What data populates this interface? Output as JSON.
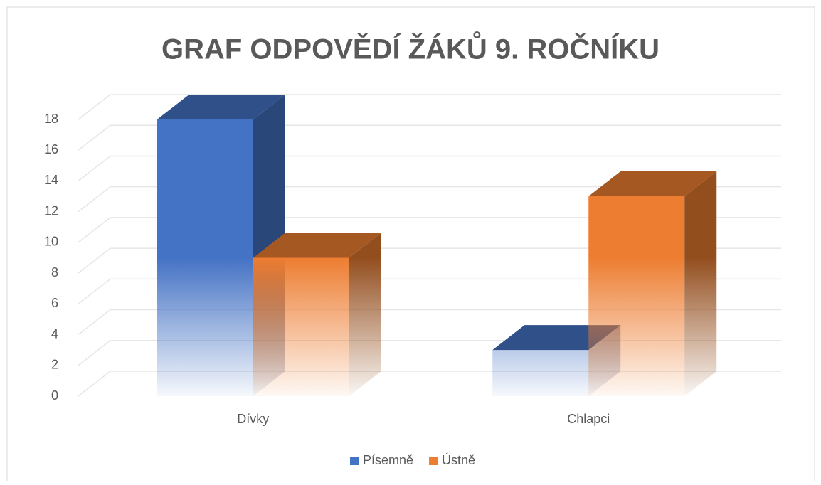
{
  "chart_data": {
    "type": "bar3d",
    "title": "GRAF ODPOVĚDÍ ŽÁKŮ 9. ROČNÍKU",
    "categories": [
      "Dívky",
      "Chlapci"
    ],
    "series": [
      {
        "name": "Písemně",
        "color": "#4472c4",
        "values": [
          18,
          3
        ]
      },
      {
        "name": "Ústně",
        "color": "#ed7d31",
        "values": [
          9,
          13
        ]
      }
    ],
    "ylim": [
      0,
      18
    ],
    "yticks": [
      0,
      2,
      4,
      6,
      8,
      10,
      12,
      14,
      16,
      18
    ],
    "grid": true,
    "legend": "bottom"
  }
}
